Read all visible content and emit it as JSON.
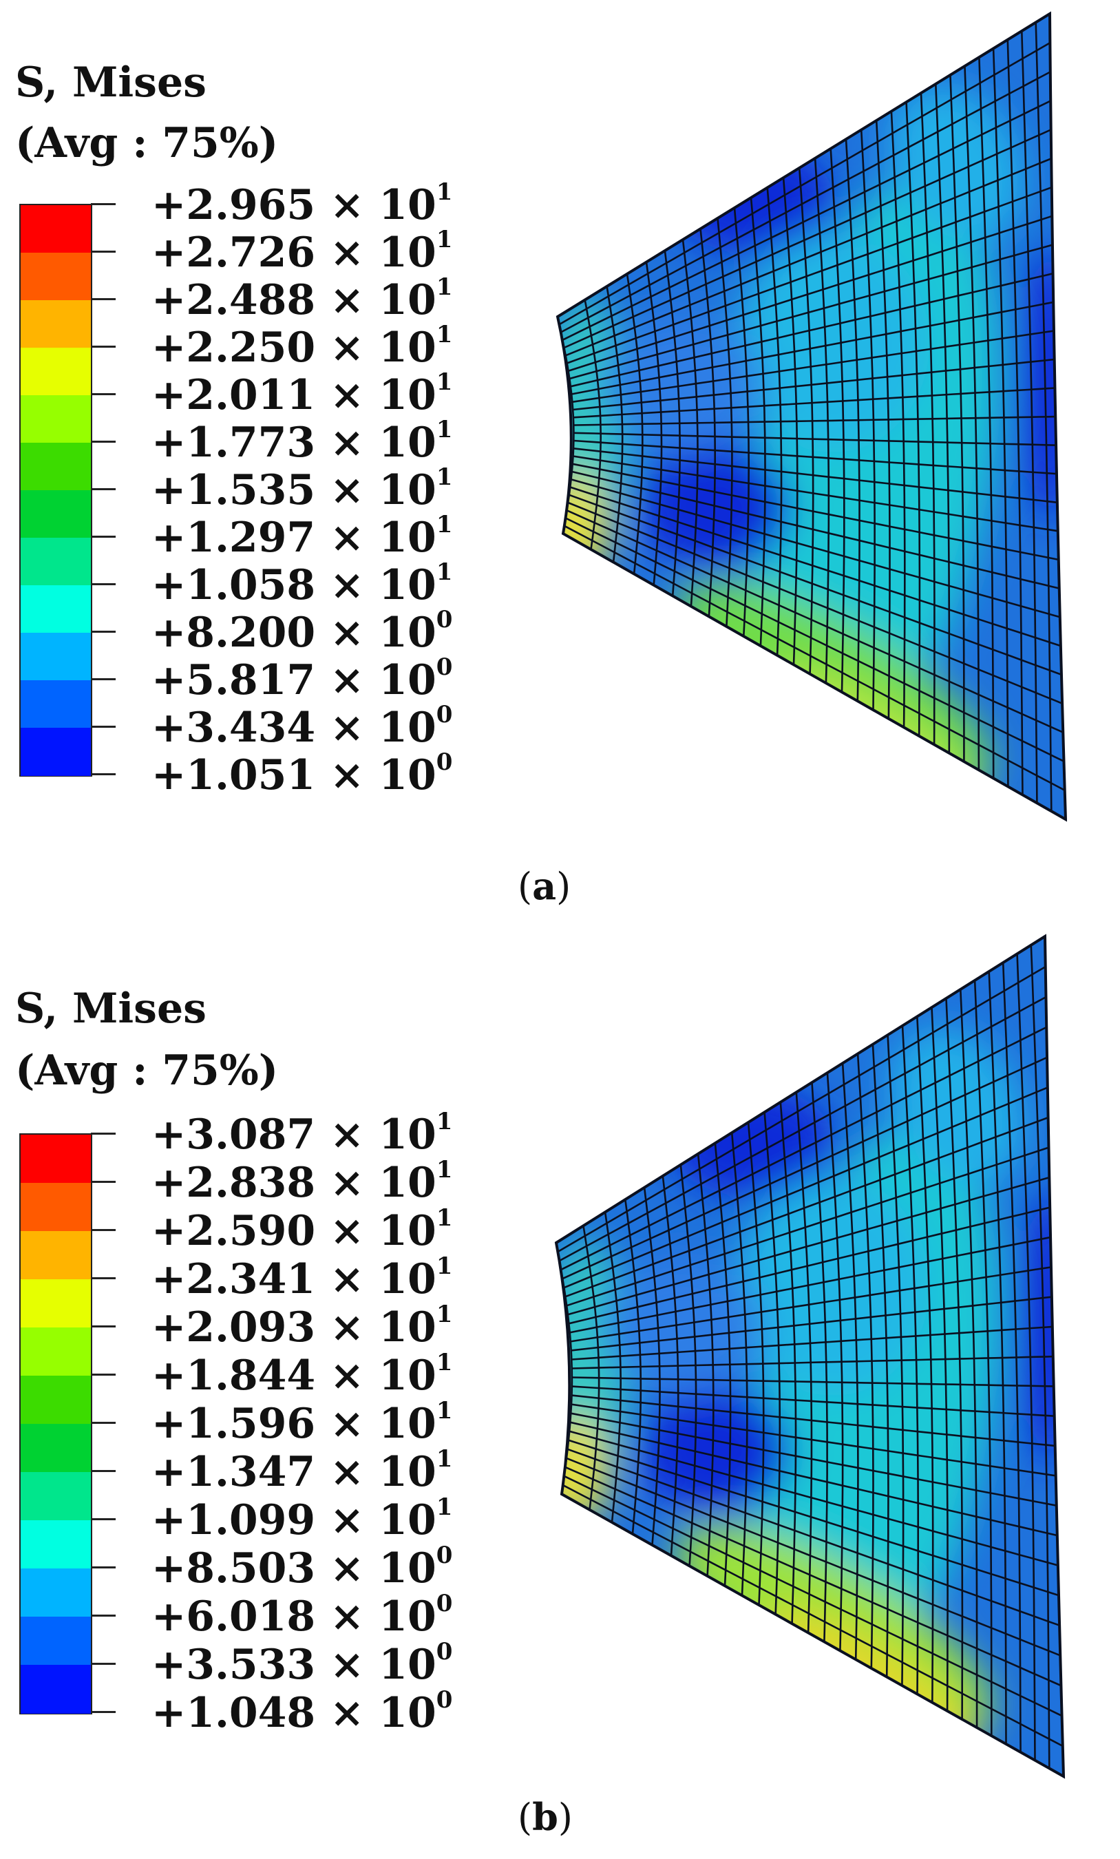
{
  "panels": [
    {
      "id": "a",
      "title_line1": "S, Mises",
      "title_line2": "(Avg : 75%)",
      "labels": [
        {
          "mant": "+2.965 × 10",
          "exp": "1"
        },
        {
          "mant": "+2.726 × 10",
          "exp": "1"
        },
        {
          "mant": "+2.488 × 10",
          "exp": "1"
        },
        {
          "mant": "+2.250 × 10",
          "exp": "1"
        },
        {
          "mant": "+2.011 × 10",
          "exp": "1"
        },
        {
          "mant": "+1.773 × 10",
          "exp": "1"
        },
        {
          "mant": "+1.535 × 10",
          "exp": "1"
        },
        {
          "mant": "+1.297 × 10",
          "exp": "1"
        },
        {
          "mant": "+1.058 × 10",
          "exp": "1"
        },
        {
          "mant": "+8.200 × 10",
          "exp": "0"
        },
        {
          "mant": "+5.817 × 10",
          "exp": "0"
        },
        {
          "mant": "+3.434 × 10",
          "exp": "0"
        },
        {
          "mant": "+1.051 × 10",
          "exp": "0"
        }
      ],
      "caption_letter": "a"
    },
    {
      "id": "b",
      "title_line1": "S, Mises",
      "title_line2": "(Avg : 75%)",
      "labels": [
        {
          "mant": "+3.087 × 10",
          "exp": "1"
        },
        {
          "mant": "+2.838 × 10",
          "exp": "1"
        },
        {
          "mant": "+2.590 × 10",
          "exp": "1"
        },
        {
          "mant": "+2.341 × 10",
          "exp": "1"
        },
        {
          "mant": "+2.093 × 10",
          "exp": "1"
        },
        {
          "mant": "+1.844 × 10",
          "exp": "1"
        },
        {
          "mant": "+1.596 × 10",
          "exp": "1"
        },
        {
          "mant": "+1.347 × 10",
          "exp": "1"
        },
        {
          "mant": "+1.099 × 10",
          "exp": "1"
        },
        {
          "mant": "+8.503 × 10",
          "exp": "0"
        },
        {
          "mant": "+6.018 × 10",
          "exp": "0"
        },
        {
          "mant": "+3.533 × 10",
          "exp": "0"
        },
        {
          "mant": "+1.048 × 10",
          "exp": "0"
        }
      ],
      "caption_letter": "b"
    }
  ],
  "colors": {
    "band_colors": [
      "#ff0000",
      "#ff5a00",
      "#ffb400",
      "#e6ff00",
      "#96ff00",
      "#3cdc00",
      "#00d232",
      "#00e68c",
      "#00ffe1",
      "#00b4ff",
      "#0064ff",
      "#0014ff"
    ],
    "mesh_base": "#1f72dc",
    "mesh_line": "#0a1020"
  }
}
